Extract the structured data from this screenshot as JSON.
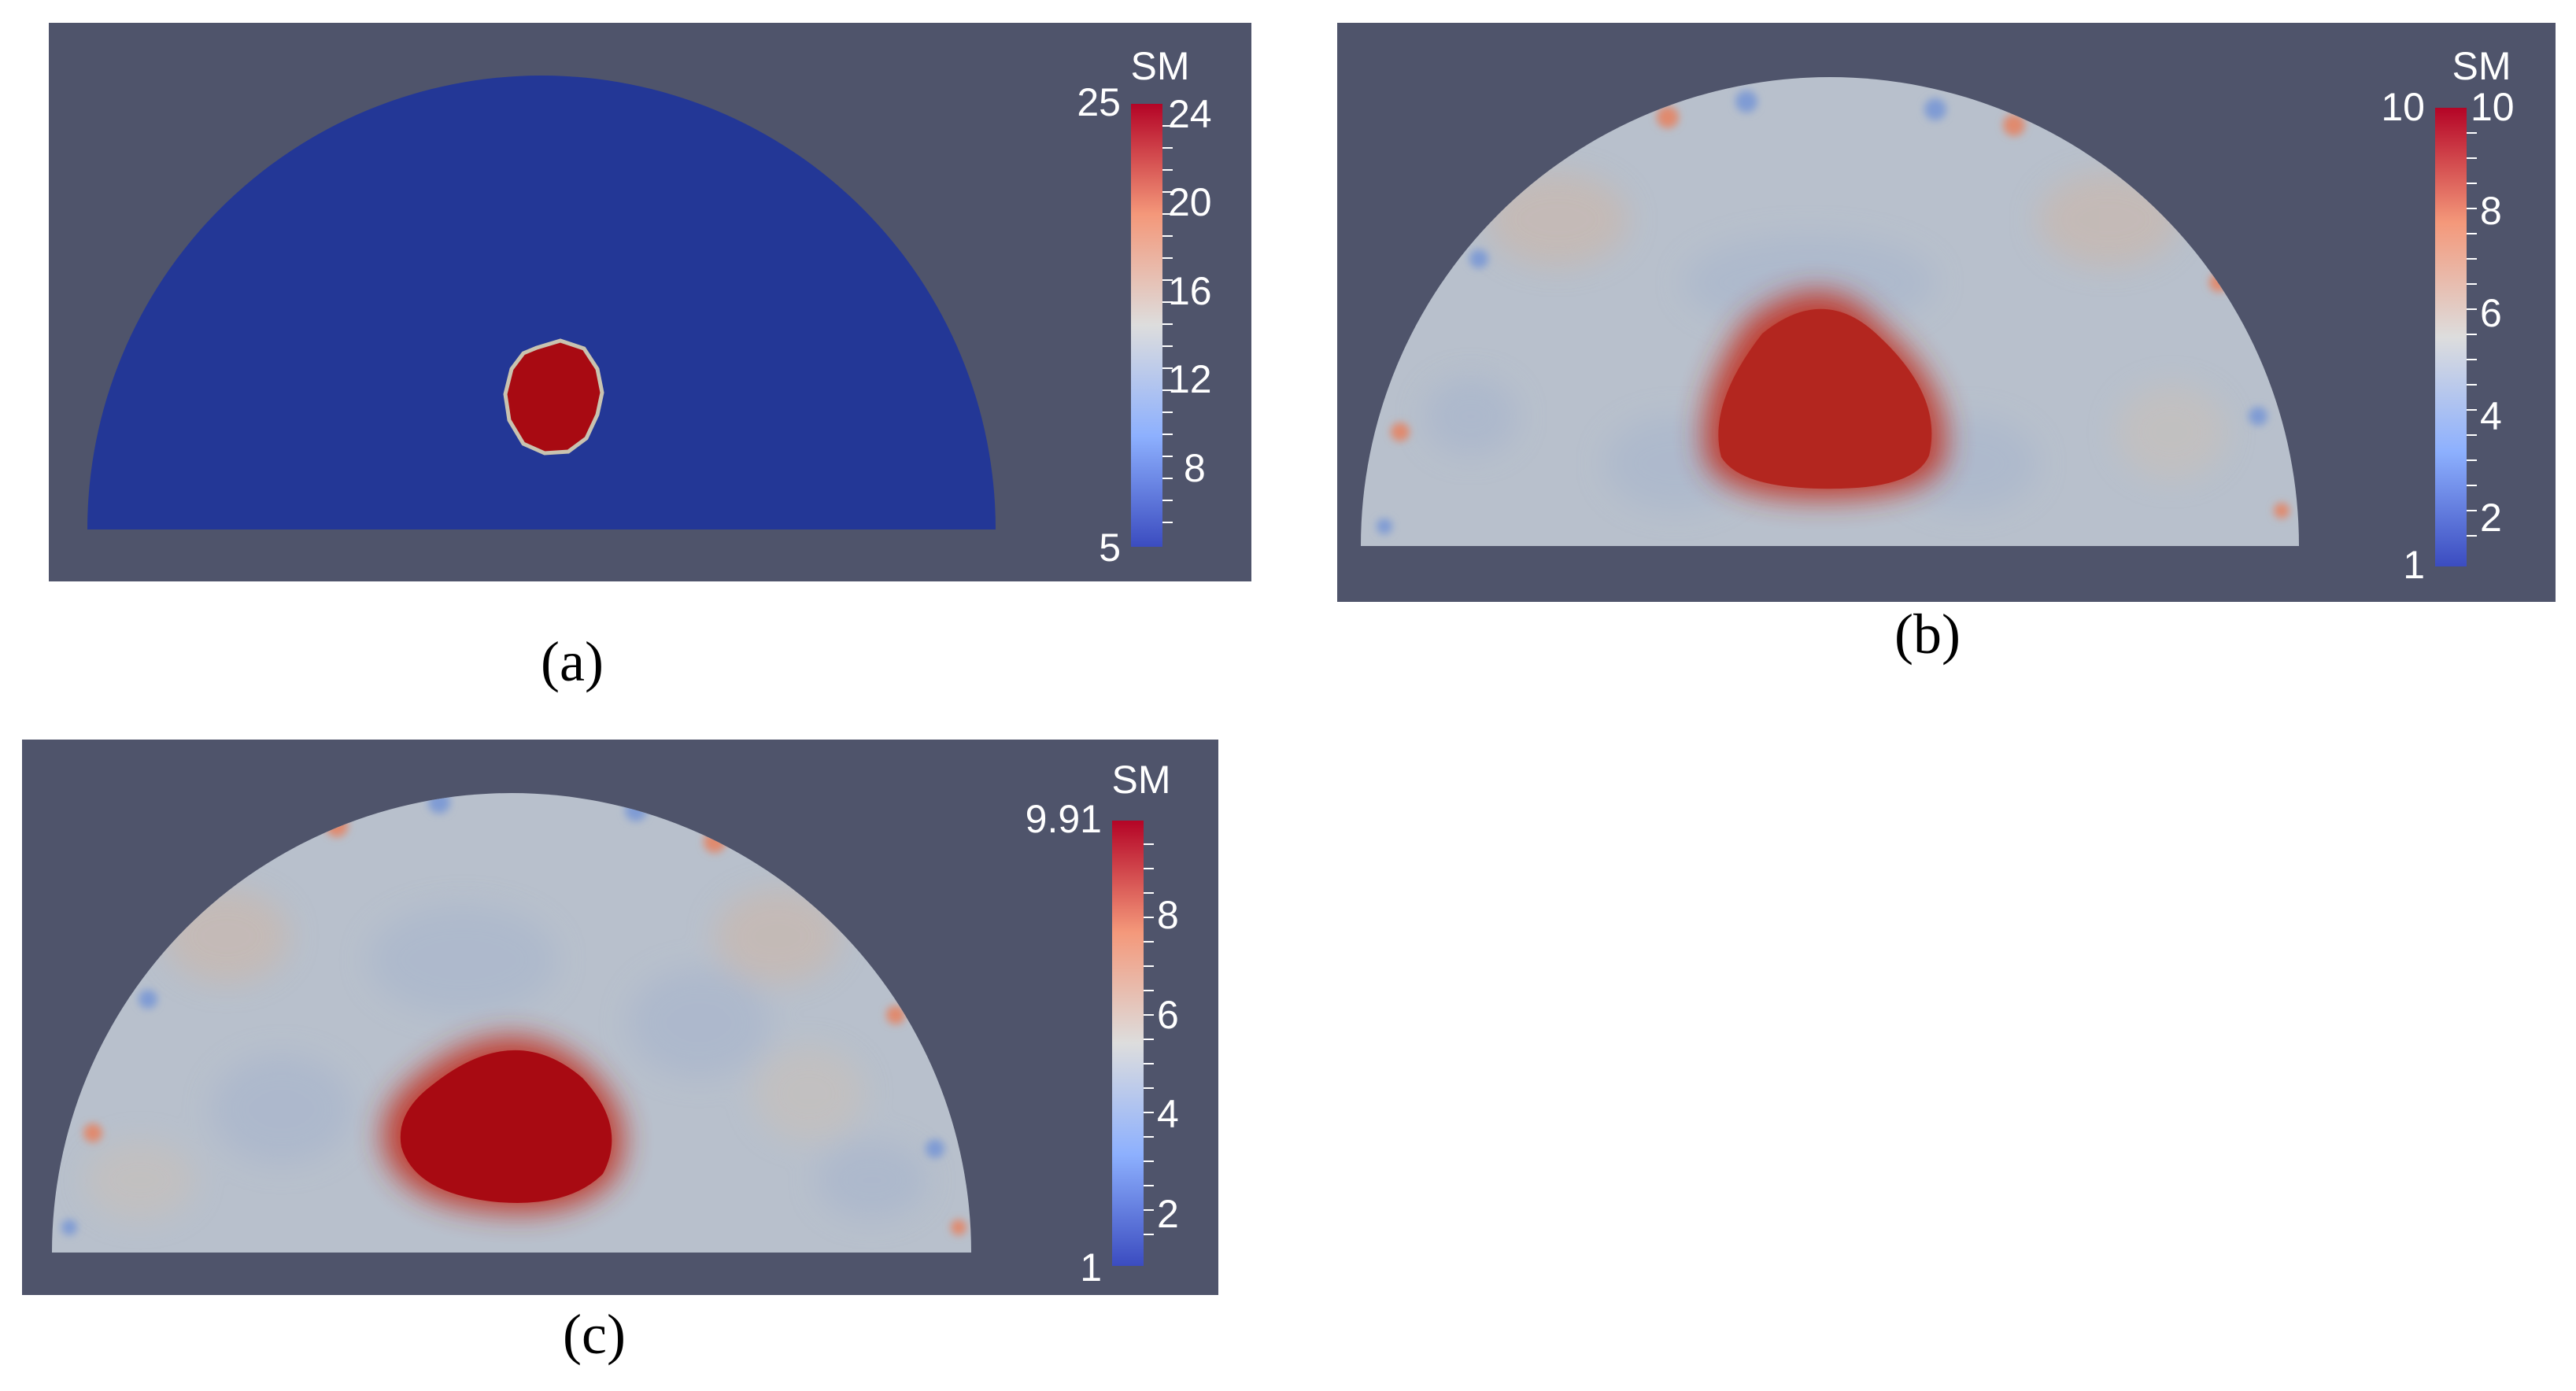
{
  "panels": [
    {
      "caption": "(a)",
      "colorbar": {
        "title": "SM",
        "min_label": "5",
        "max_label": "25",
        "ticks": [
          "24",
          "20",
          "16",
          "12",
          "8"
        ]
      }
    },
    {
      "caption": "(b)",
      "colorbar": {
        "title": "SM",
        "min_label": "1",
        "max_label": "10",
        "ticks": [
          "10",
          "8",
          "6",
          "4",
          "2"
        ]
      }
    },
    {
      "caption": "(c)",
      "colorbar": {
        "title": "SM",
        "min_label": "1",
        "max_label": "9.91",
        "ticks": [
          "8",
          "6",
          "4",
          "2"
        ]
      }
    }
  ],
  "colors": {
    "background": "#4f546b",
    "domain_a": "#233796",
    "inclusion": "#a80a12",
    "domain_bc": "#b8c0cc",
    "colormap": [
      "#3b4cc0",
      "#8db0fe",
      "#dddddd",
      "#f4987a",
      "#b40426"
    ]
  }
}
